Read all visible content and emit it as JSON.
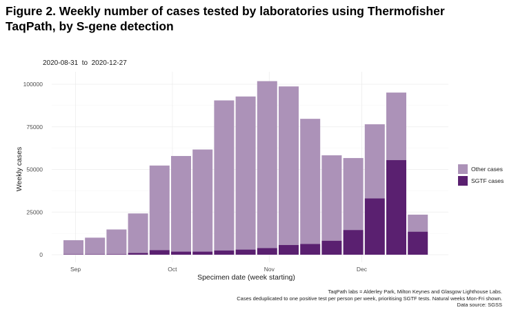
{
  "title_line1": "Figure 2. Weekly number of cases tested by laboratories using Thermofisher",
  "title_line2": "TaqPath, by S-gene detection",
  "date_range": "2020-08-31  to  2020-12-27",
  "colors": {
    "other": "#ac92b8",
    "sgtf": "#5a2070",
    "grid": "#ececec"
  },
  "legend": {
    "other": "Other cases",
    "sgtf": "SGTF cases"
  },
  "notes": [
    "TaqPath labs = Alderley Park, Milton Keynes and Glasgow Lighthouse Labs.",
    "Cases deduplicated to one positive test per person per week, prioritising SGTF tests. Natural weeks Mon-Fri shown.",
    "Data source: SGSS"
  ],
  "chart_data": {
    "type": "bar",
    "stacked": true,
    "title": "Weekly number of cases tested by laboratories using Thermofisher TaqPath, by S-gene detection",
    "xlabel": "Specimen date (week starting)",
    "ylabel": "Weekly cases",
    "ylim": [
      0,
      105000
    ],
    "yticks": [
      0,
      25000,
      50000,
      75000,
      100000
    ],
    "xtick_labels": [
      {
        "label": "Sep",
        "index": 0
      },
      {
        "label": "Oct",
        "index": 4.5
      },
      {
        "label": "Nov",
        "index": 9
      },
      {
        "label": "Dec",
        "index": 13.3
      }
    ],
    "categories": [
      "2020-08-31",
      "2020-09-07",
      "2020-09-14",
      "2020-09-21",
      "2020-09-28",
      "2020-10-05",
      "2020-10-12",
      "2020-10-19",
      "2020-10-26",
      "2020-11-02",
      "2020-11-09",
      "2020-11-16",
      "2020-11-23",
      "2020-11-30",
      "2020-12-07",
      "2020-12-14",
      "2020-12-21"
    ],
    "series": [
      {
        "name": "SGTF cases",
        "values": [
          200,
          200,
          300,
          1000,
          2700,
          1800,
          1800,
          2500,
          3000,
          3900,
          5700,
          6300,
          8200,
          14500,
          33000,
          55500,
          13500
        ]
      },
      {
        "name": "Other cases",
        "values": [
          8300,
          9800,
          14500,
          23200,
          49600,
          56100,
          59900,
          88000,
          89800,
          97900,
          93000,
          73400,
          50100,
          42200,
          43500,
          39600,
          10000
        ]
      }
    ],
    "legend_position": "right",
    "grid": true
  }
}
